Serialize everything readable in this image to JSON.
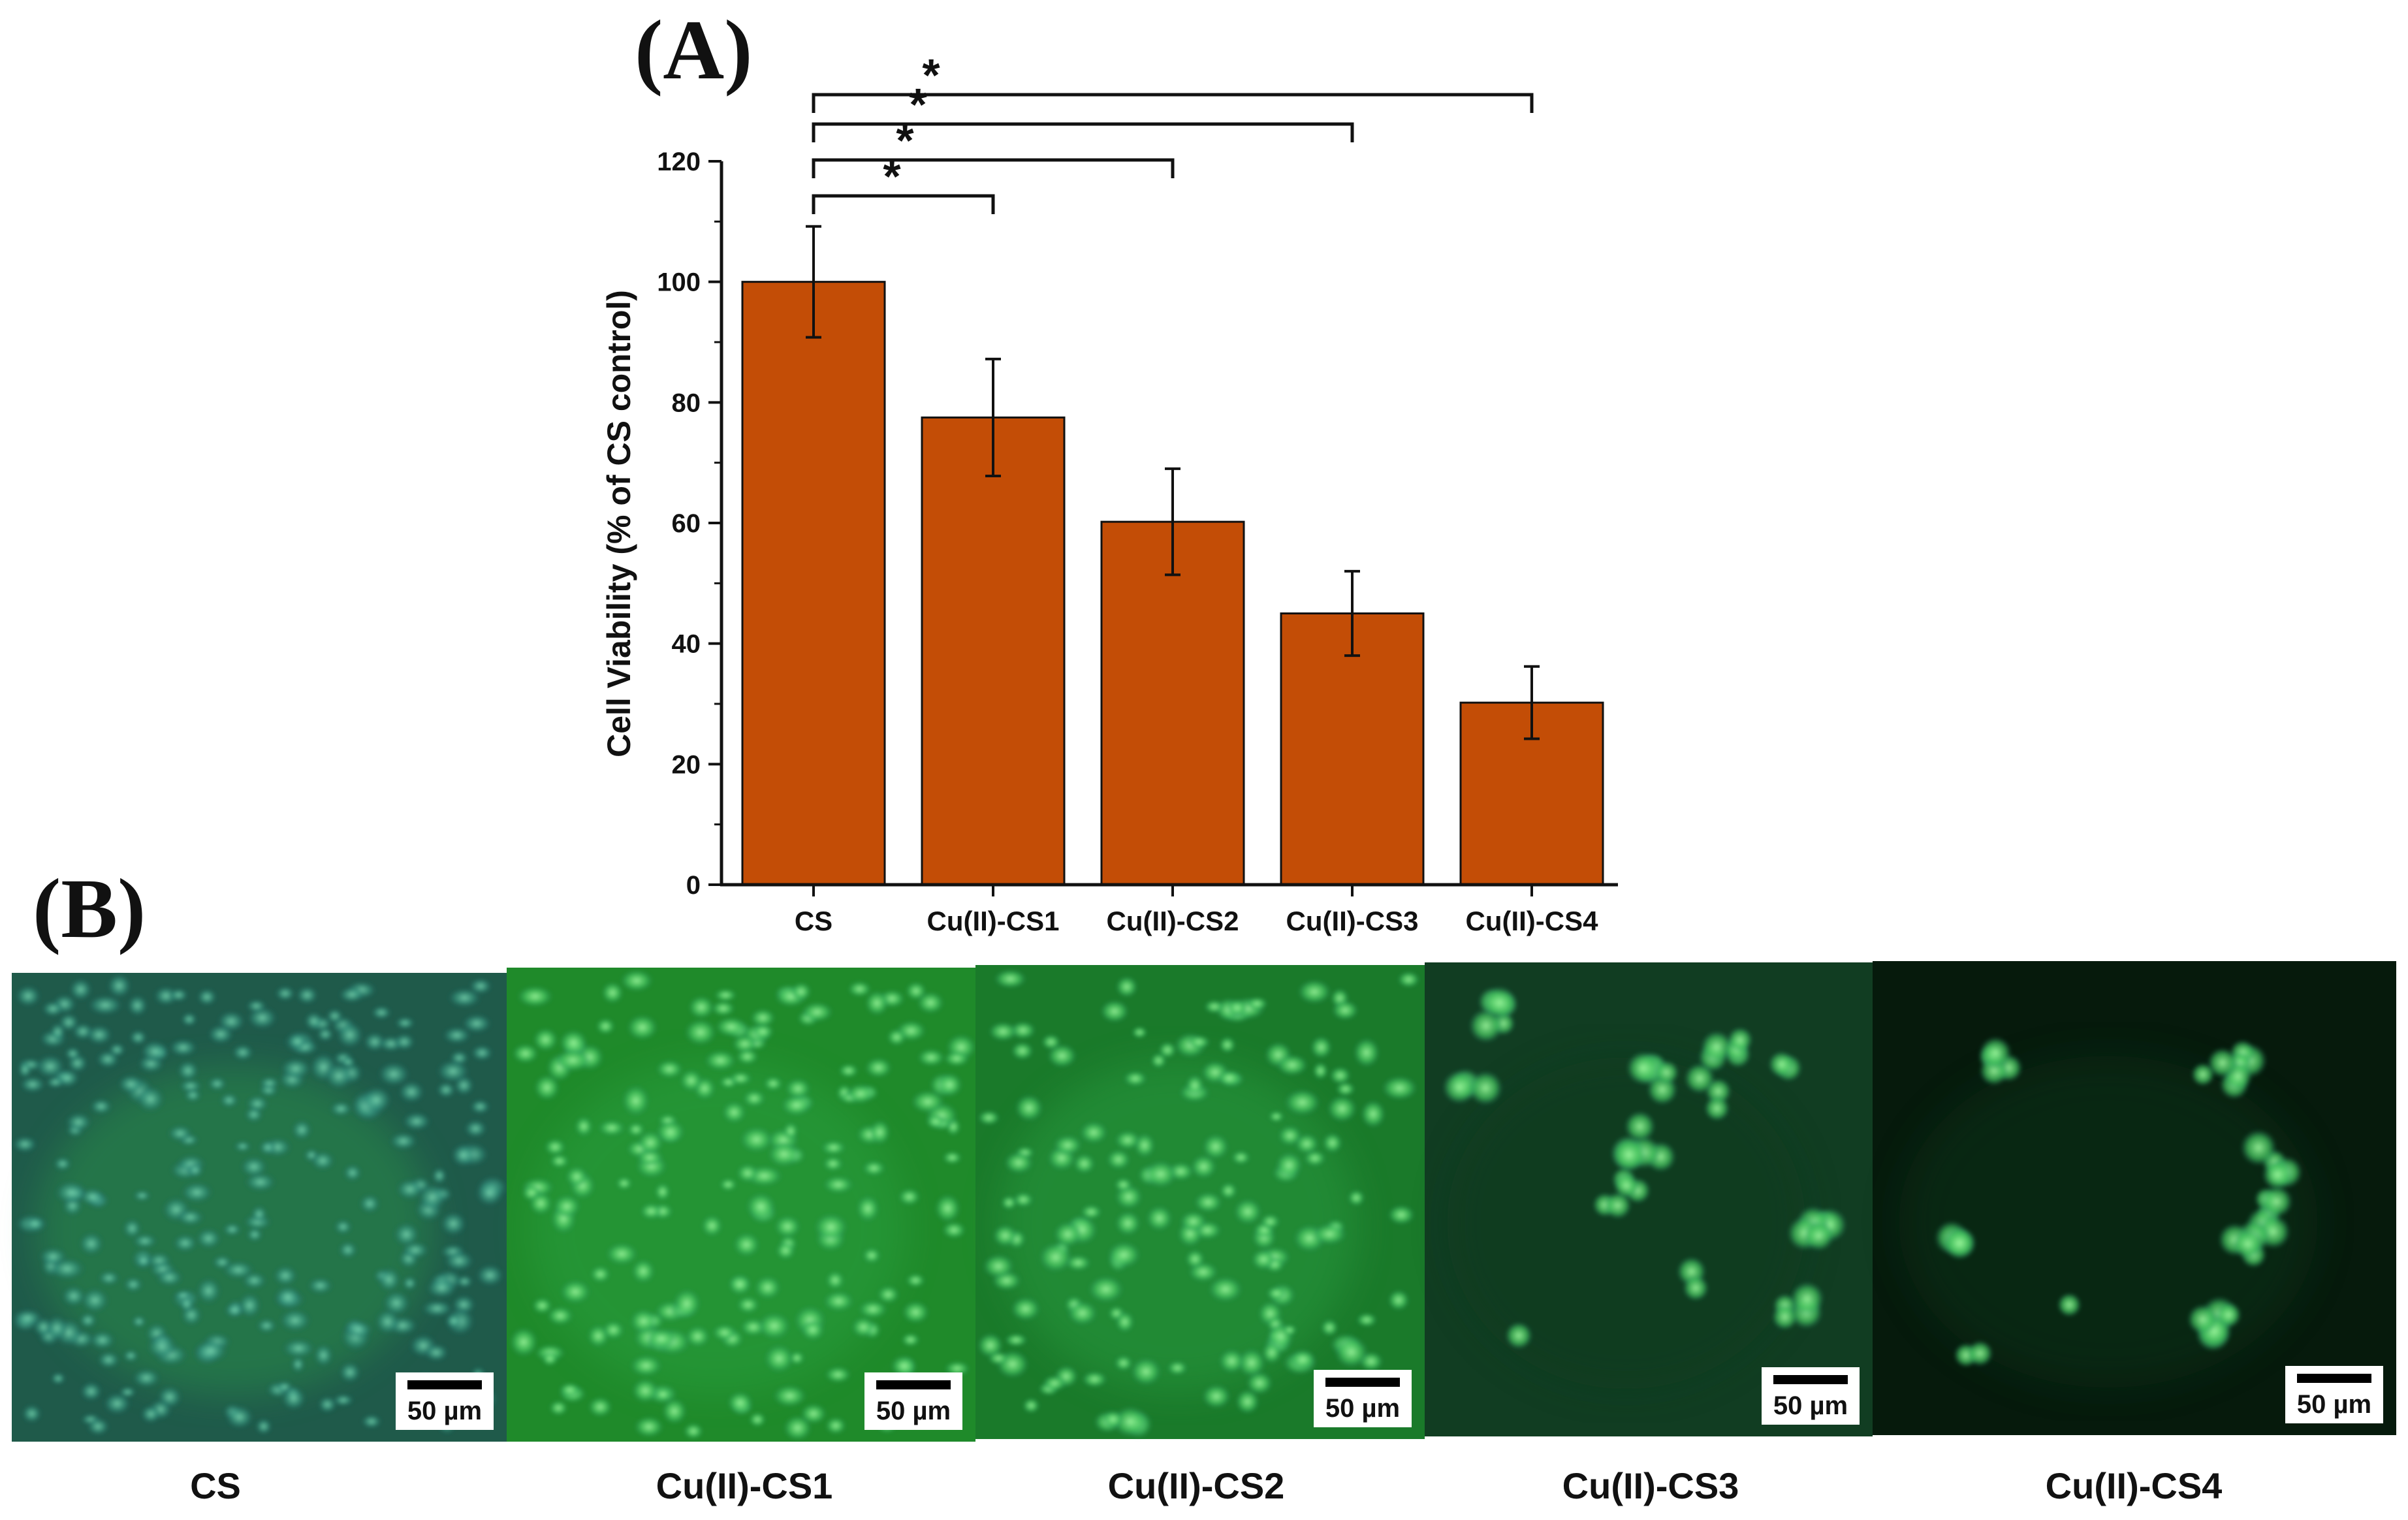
{
  "panel_a": {
    "letter": "(A)"
  },
  "panel_b": {
    "letter": "(B)"
  },
  "chart_data": {
    "type": "bar",
    "categories": [
      "CS",
      "Cu(II)-CS1",
      "Cu(II)-CS2",
      "Cu(II)-CS3",
      "Cu(II)-CS4"
    ],
    "values": [
      100,
      77.5,
      60.2,
      45,
      30.2
    ],
    "errors": [
      9.2,
      9.7,
      8.8,
      7,
      6
    ],
    "ylabel": "Cell Viability (% of CS control)",
    "xlabel": "",
    "ylim": [
      0,
      120
    ],
    "yticks": [
      "0",
      "20",
      "40",
      "60",
      "80",
      "100",
      "120"
    ],
    "bar_color": "#C34D06",
    "grid": false,
    "significance": [
      {
        "from": "CS",
        "to": "Cu(II)-CS1",
        "label": "*"
      },
      {
        "from": "CS",
        "to": "Cu(II)-CS2",
        "label": "*"
      },
      {
        "from": "CS",
        "to": "Cu(II)-CS3",
        "label": "*"
      },
      {
        "from": "CS",
        "to": "Cu(II)-CS4",
        "label": "*"
      }
    ]
  },
  "micrographs": [
    {
      "caption": "CS",
      "scale_label": "50 µm",
      "cell_density": "dense-confluent",
      "tint": "#1f5a4a"
    },
    {
      "caption": "Cu(II)-CS1",
      "scale_label": "50 µm",
      "cell_density": "dense",
      "tint": "#1f8a2a"
    },
    {
      "caption": "Cu(II)-CS2",
      "scale_label": "50 µm",
      "cell_density": "moderate",
      "tint": "#1a7a2a"
    },
    {
      "caption": "Cu(II)-CS3",
      "scale_label": "50 µm",
      "cell_density": "sparse-clusters",
      "tint": "#113d22"
    },
    {
      "caption": "Cu(II)-CS4",
      "scale_label": "50 µm",
      "cell_density": "very-sparse-clusters",
      "tint": "#061a0c"
    }
  ]
}
